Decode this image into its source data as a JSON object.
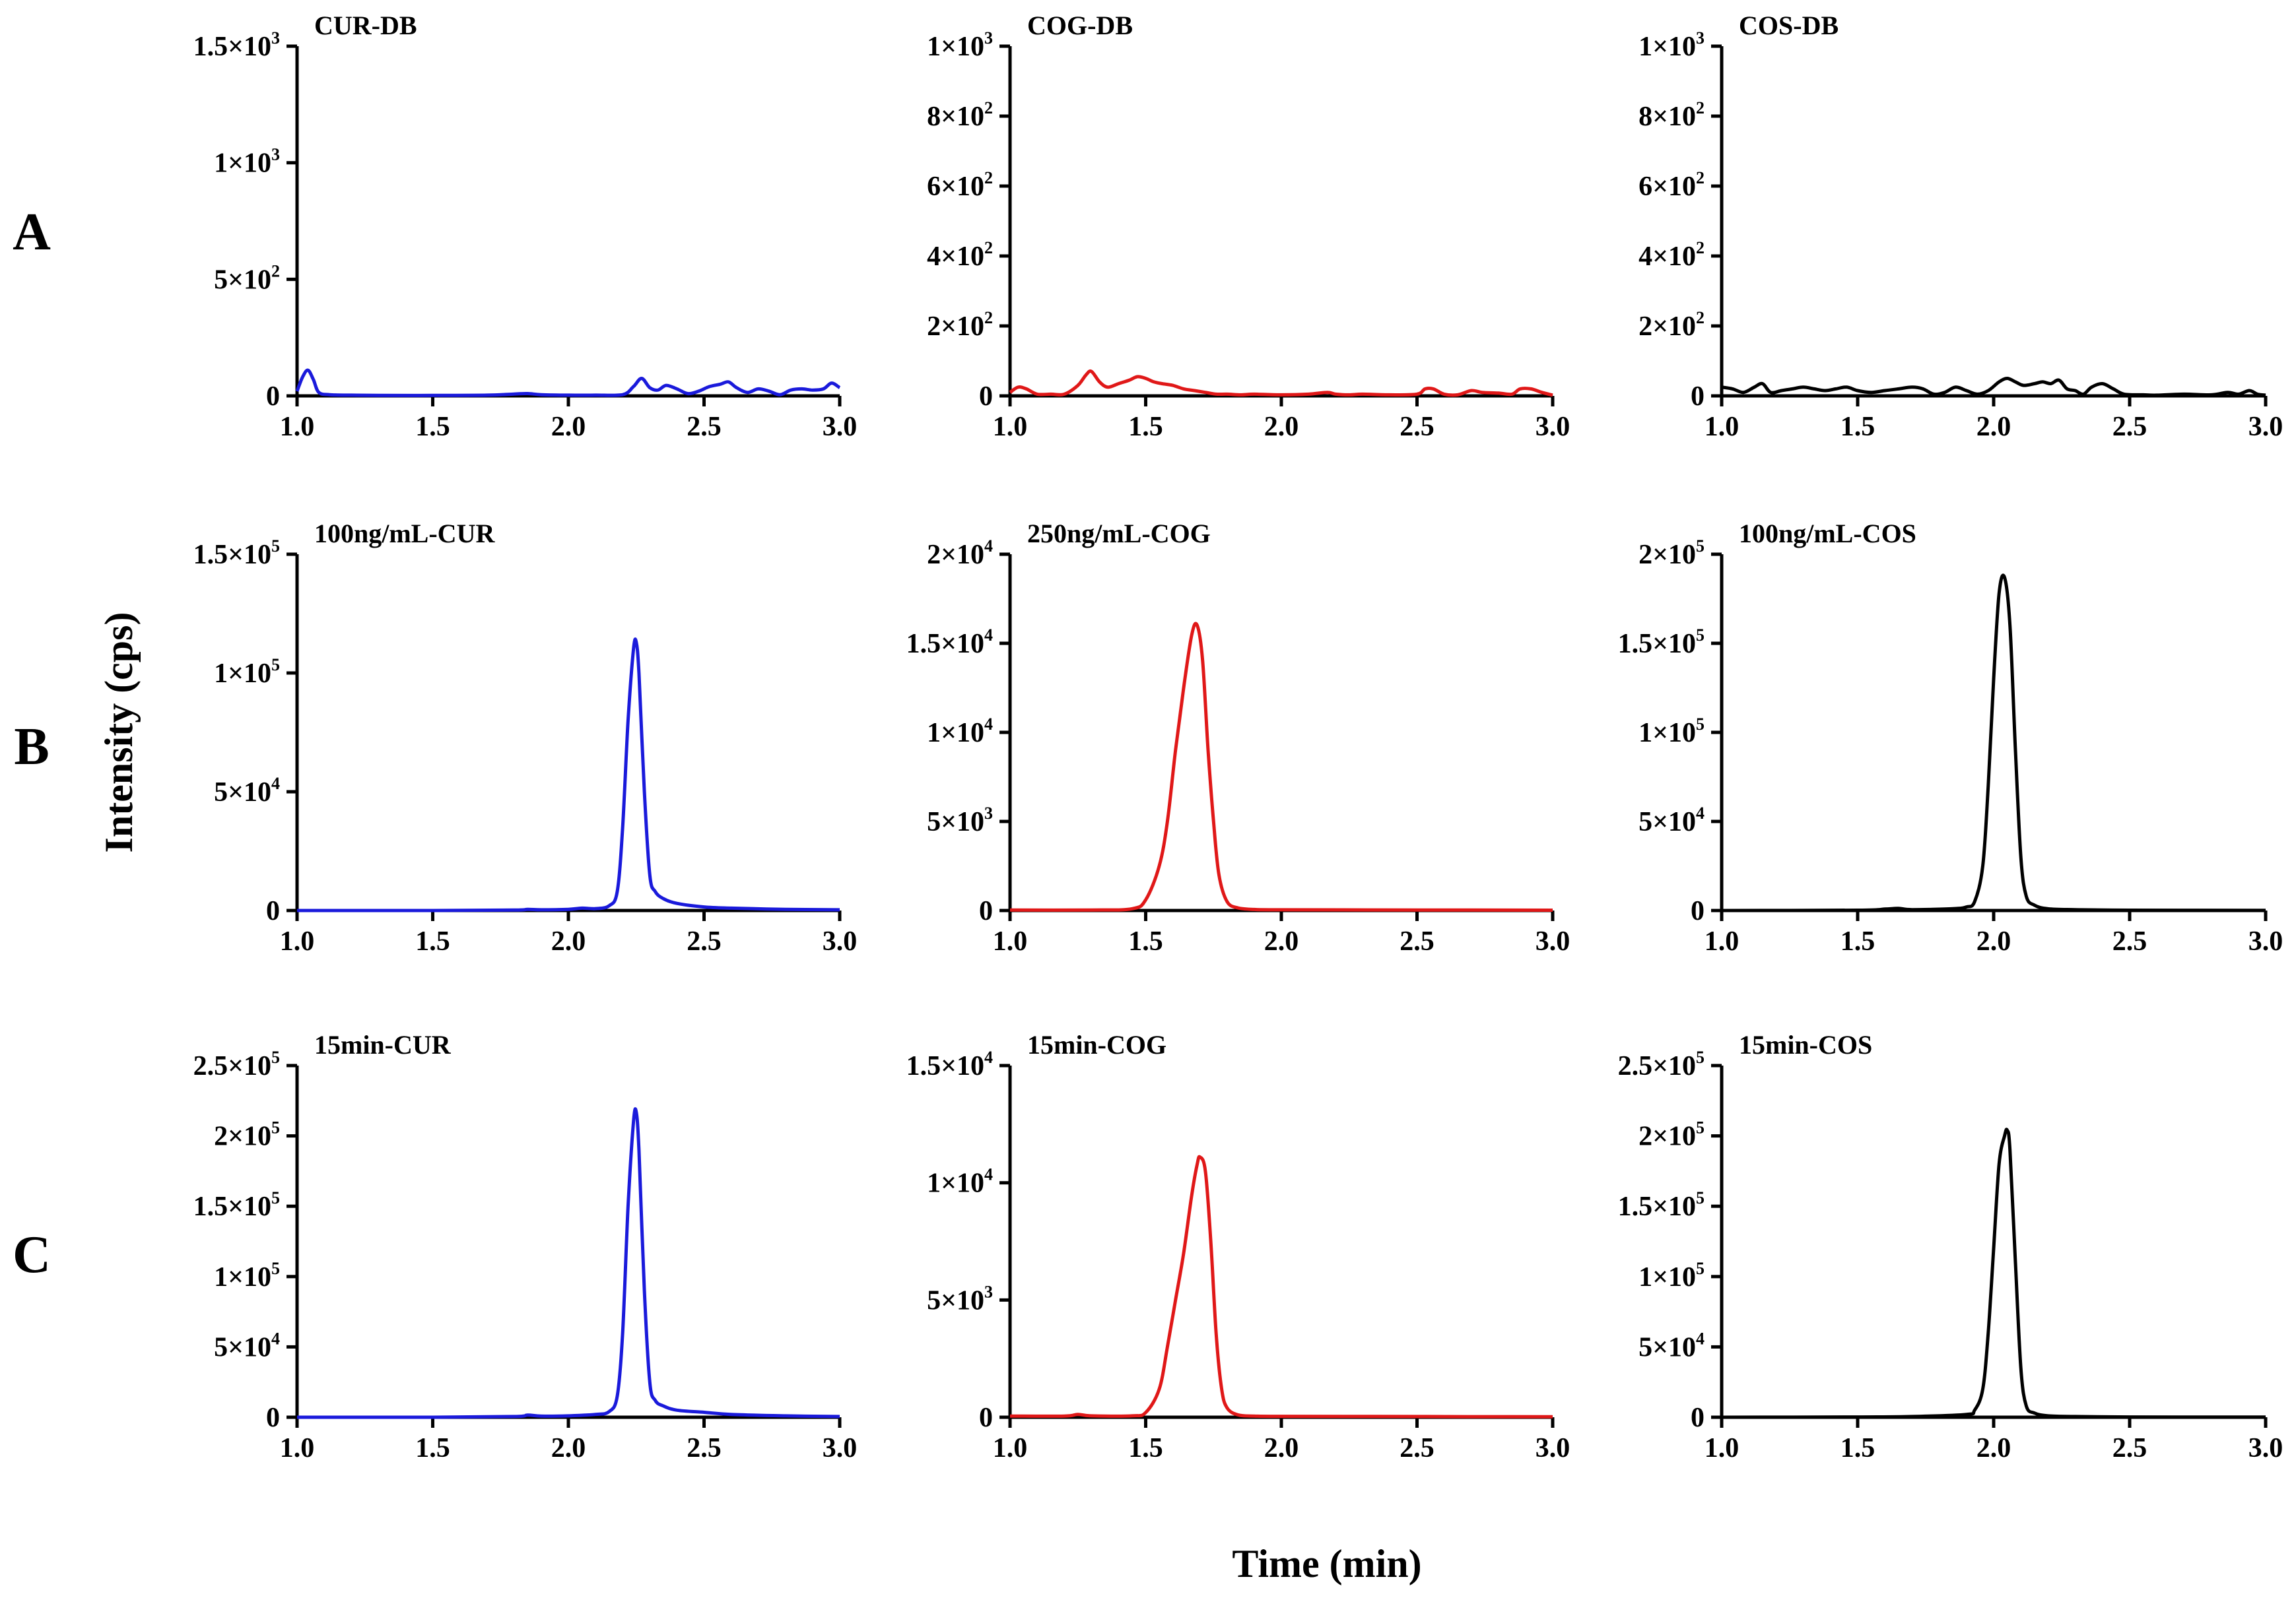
{
  "figure": {
    "ylabel": "Intensity (cps)",
    "xlabel": "Time (min)",
    "row_labels": [
      "A",
      "B",
      "C"
    ]
  },
  "colors": {
    "CUR": "#1a1adb",
    "COG": "#e01818",
    "COS": "#000000"
  },
  "chart_data": [
    {
      "type": "line",
      "row": "A",
      "title": "CUR-DB",
      "series_color": "CUR",
      "xlim": [
        1.0,
        3.0
      ],
      "ylim": [
        0,
        1500
      ],
      "xticks": [
        {
          "v": 1.0,
          "t": "1.0"
        },
        {
          "v": 1.5,
          "t": "1.5"
        },
        {
          "v": 2.0,
          "t": "2.0"
        },
        {
          "v": 2.5,
          "t": "2.5"
        },
        {
          "v": 3.0,
          "t": "3.0"
        }
      ],
      "yticks": [
        {
          "v": 0,
          "t": "0"
        },
        {
          "v": 500,
          "t": "5×10",
          "e": "2"
        },
        {
          "v": 1000,
          "t": "1×10",
          "e": "3"
        },
        {
          "v": 1500,
          "t": "1.5×10",
          "e": "3"
        }
      ],
      "x": [
        1.0,
        1.02,
        1.04,
        1.06,
        1.08,
        1.12,
        1.2,
        1.3,
        1.5,
        1.7,
        1.8,
        1.85,
        1.9,
        2.0,
        2.1,
        2.2,
        2.24,
        2.27,
        2.3,
        2.33,
        2.36,
        2.4,
        2.44,
        2.48,
        2.52,
        2.56,
        2.59,
        2.62,
        2.66,
        2.7,
        2.74,
        2.78,
        2.82,
        2.86,
        2.9,
        2.94,
        2.97,
        3.0
      ],
      "y": [
        20,
        80,
        110,
        70,
        15,
        5,
        3,
        2,
        2,
        3,
        8,
        10,
        5,
        3,
        3,
        5,
        40,
        75,
        35,
        25,
        45,
        30,
        10,
        20,
        40,
        50,
        60,
        35,
        15,
        30,
        20,
        5,
        25,
        30,
        25,
        30,
        55,
        35
      ]
    },
    {
      "type": "line",
      "row": "A",
      "title": "COG-DB",
      "series_color": "COG",
      "xlim": [
        1.0,
        3.0
      ],
      "ylim": [
        0,
        1000
      ],
      "xticks": [
        {
          "v": 1.0,
          "t": "1.0"
        },
        {
          "v": 1.5,
          "t": "1.5"
        },
        {
          "v": 2.0,
          "t": "2.0"
        },
        {
          "v": 2.5,
          "t": "2.5"
        },
        {
          "v": 3.0,
          "t": "3.0"
        }
      ],
      "yticks": [
        {
          "v": 0,
          "t": "0"
        },
        {
          "v": 200,
          "t": "2×10",
          "e": "2"
        },
        {
          "v": 400,
          "t": "4×10",
          "e": "2"
        },
        {
          "v": 600,
          "t": "6×10",
          "e": "2"
        },
        {
          "v": 800,
          "t": "8×10",
          "e": "2"
        },
        {
          "v": 1000,
          "t": "1×10",
          "e": "3"
        }
      ],
      "x": [
        1.0,
        1.03,
        1.06,
        1.1,
        1.15,
        1.2,
        1.25,
        1.28,
        1.3,
        1.33,
        1.36,
        1.4,
        1.44,
        1.47,
        1.5,
        1.53,
        1.56,
        1.6,
        1.64,
        1.68,
        1.72,
        1.76,
        1.8,
        1.85,
        1.9,
        2.0,
        2.1,
        2.17,
        2.2,
        2.25,
        2.3,
        2.4,
        2.5,
        2.53,
        2.56,
        2.6,
        2.65,
        2.7,
        2.74,
        2.8,
        2.85,
        2.88,
        2.92,
        2.96,
        3.0
      ],
      "y": [
        10,
        25,
        20,
        5,
        5,
        5,
        30,
        60,
        70,
        40,
        25,
        35,
        45,
        55,
        50,
        40,
        35,
        30,
        20,
        15,
        10,
        5,
        5,
        3,
        5,
        3,
        5,
        10,
        5,
        3,
        5,
        3,
        5,
        20,
        20,
        5,
        3,
        15,
        10,
        8,
        5,
        20,
        20,
        10,
        2
      ]
    },
    {
      "type": "line",
      "row": "A",
      "title": "COS-DB",
      "series_color": "COS",
      "xlim": [
        1.0,
        3.0
      ],
      "ylim": [
        0,
        1000
      ],
      "xticks": [
        {
          "v": 1.0,
          "t": "1.0"
        },
        {
          "v": 1.5,
          "t": "1.5"
        },
        {
          "v": 2.0,
          "t": "2.0"
        },
        {
          "v": 2.5,
          "t": "2.5"
        },
        {
          "v": 3.0,
          "t": "3.0"
        }
      ],
      "yticks": [
        {
          "v": 0,
          "t": "0"
        },
        {
          "v": 200,
          "t": "2×10",
          "e": "2"
        },
        {
          "v": 400,
          "t": "4×10",
          "e": "2"
        },
        {
          "v": 600,
          "t": "6×10",
          "e": "2"
        },
        {
          "v": 800,
          "t": "8×10",
          "e": "2"
        },
        {
          "v": 1000,
          "t": "1×10",
          "e": "3"
        }
      ],
      "x": [
        1.0,
        1.04,
        1.08,
        1.12,
        1.15,
        1.18,
        1.22,
        1.26,
        1.3,
        1.34,
        1.38,
        1.42,
        1.46,
        1.5,
        1.55,
        1.6,
        1.65,
        1.7,
        1.74,
        1.78,
        1.82,
        1.86,
        1.9,
        1.94,
        1.98,
        2.02,
        2.05,
        2.08,
        2.11,
        2.15,
        2.18,
        2.21,
        2.24,
        2.27,
        2.3,
        2.33,
        2.36,
        2.4,
        2.44,
        2.48,
        2.55,
        2.6,
        2.7,
        2.8,
        2.86,
        2.9,
        2.94,
        2.97,
        3.0
      ],
      "y": [
        25,
        20,
        10,
        25,
        35,
        10,
        15,
        20,
        25,
        20,
        15,
        20,
        25,
        15,
        10,
        15,
        20,
        25,
        20,
        5,
        10,
        25,
        15,
        5,
        15,
        40,
        50,
        40,
        30,
        35,
        40,
        35,
        45,
        20,
        15,
        5,
        25,
        35,
        20,
        5,
        3,
        2,
        5,
        3,
        10,
        5,
        15,
        5,
        2
      ]
    },
    {
      "type": "line",
      "row": "B",
      "title": "100ng/mL-CUR",
      "series_color": "CUR",
      "xlim": [
        1.0,
        3.0
      ],
      "ylim": [
        0,
        150000
      ],
      "xticks": [
        {
          "v": 1.0,
          "t": "1.0"
        },
        {
          "v": 1.5,
          "t": "1.5"
        },
        {
          "v": 2.0,
          "t": "2.0"
        },
        {
          "v": 2.5,
          "t": "2.5"
        },
        {
          "v": 3.0,
          "t": "3.0"
        }
      ],
      "yticks": [
        {
          "v": 0,
          "t": "0"
        },
        {
          "v": 50000,
          "t": "5×10",
          "e": "4"
        },
        {
          "v": 100000,
          "t": "1×10",
          "e": "5"
        },
        {
          "v": 150000,
          "t": "1.5×10",
          "e": "5"
        }
      ],
      "x": [
        1.0,
        1.5,
        1.8,
        1.85,
        1.9,
        2.0,
        2.05,
        2.1,
        2.15,
        2.18,
        2.2,
        2.22,
        2.24,
        2.25,
        2.26,
        2.28,
        2.3,
        2.32,
        2.35,
        2.4,
        2.5,
        2.6,
        2.8,
        3.0
      ],
      "y": [
        0,
        0,
        200,
        500,
        300,
        500,
        1000,
        800,
        2000,
        8000,
        35000,
        80000,
        110000,
        113000,
        100000,
        50000,
        15000,
        8000,
        5000,
        3000,
        1500,
        1000,
        500,
        300
      ]
    },
    {
      "type": "line",
      "row": "B",
      "title": "250ng/mL-COG",
      "series_color": "COG",
      "xlim": [
        1.0,
        3.0
      ],
      "ylim": [
        0,
        20000
      ],
      "xticks": [
        {
          "v": 1.0,
          "t": "1.0"
        },
        {
          "v": 1.5,
          "t": "1.5"
        },
        {
          "v": 2.0,
          "t": "2.0"
        },
        {
          "v": 2.5,
          "t": "2.5"
        },
        {
          "v": 3.0,
          "t": "3.0"
        }
      ],
      "yticks": [
        {
          "v": 0,
          "t": "0"
        },
        {
          "v": 5000,
          "t": "5×10",
          "e": "3"
        },
        {
          "v": 10000,
          "t": "1×10",
          "e": "4"
        },
        {
          "v": 15000,
          "t": "1.5×10",
          "e": "4"
        },
        {
          "v": 20000,
          "t": "2×10",
          "e": "4"
        }
      ],
      "x": [
        1.0,
        1.3,
        1.45,
        1.5,
        1.55,
        1.58,
        1.61,
        1.64,
        1.67,
        1.69,
        1.71,
        1.73,
        1.75,
        1.77,
        1.8,
        1.84,
        1.9,
        2.0,
        2.5,
        3.0
      ],
      "y": [
        30,
        30,
        100,
        600,
        2500,
        5000,
        9000,
        12500,
        15500,
        16000,
        14000,
        9000,
        5000,
        2000,
        500,
        150,
        60,
        40,
        30,
        20
      ]
    },
    {
      "type": "line",
      "row": "B",
      "title": "100ng/mL-COS",
      "series_color": "COS",
      "xlim": [
        1.0,
        3.0
      ],
      "ylim": [
        0,
        200000
      ],
      "xticks": [
        {
          "v": 1.0,
          "t": "1.0"
        },
        {
          "v": 1.5,
          "t": "1.5"
        },
        {
          "v": 2.0,
          "t": "2.0"
        },
        {
          "v": 2.5,
          "t": "2.5"
        },
        {
          "v": 3.0,
          "t": "3.0"
        }
      ],
      "yticks": [
        {
          "v": 0,
          "t": "0"
        },
        {
          "v": 50000,
          "t": "5×10",
          "e": "4"
        },
        {
          "v": 100000,
          "t": "1×10",
          "e": "5"
        },
        {
          "v": 150000,
          "t": "1.5×10",
          "e": "5"
        },
        {
          "v": 200000,
          "t": "2×10",
          "e": "5"
        }
      ],
      "x": [
        1.0,
        1.5,
        1.6,
        1.65,
        1.7,
        1.85,
        1.9,
        1.93,
        1.96,
        1.98,
        2.0,
        2.02,
        2.04,
        2.06,
        2.08,
        2.1,
        2.12,
        2.15,
        2.2,
        2.3,
        2.5,
        3.0
      ],
      "y": [
        0,
        200,
        800,
        1200,
        500,
        1000,
        2000,
        5000,
        25000,
        70000,
        130000,
        178000,
        187000,
        160000,
        90000,
        30000,
        8000,
        3000,
        1000,
        500,
        200,
        100
      ]
    },
    {
      "type": "line",
      "row": "C",
      "title": "15min-CUR",
      "series_color": "CUR",
      "xlim": [
        1.0,
        3.0
      ],
      "ylim": [
        0,
        250000
      ],
      "xticks": [
        {
          "v": 1.0,
          "t": "1.0"
        },
        {
          "v": 1.5,
          "t": "1.5"
        },
        {
          "v": 2.0,
          "t": "2.0"
        },
        {
          "v": 2.5,
          "t": "2.5"
        },
        {
          "v": 3.0,
          "t": "3.0"
        }
      ],
      "yticks": [
        {
          "v": 0,
          "t": "0"
        },
        {
          "v": 50000,
          "t": "5×10",
          "e": "4"
        },
        {
          "v": 100000,
          "t": "1×10",
          "e": "5"
        },
        {
          "v": 150000,
          "t": "1.5×10",
          "e": "5"
        },
        {
          "v": 200000,
          "t": "2×10",
          "e": "5"
        },
        {
          "v": 250000,
          "t": "2.5×10",
          "e": "5"
        }
      ],
      "x": [
        1.0,
        1.5,
        1.8,
        1.85,
        1.9,
        2.0,
        2.1,
        2.15,
        2.18,
        2.2,
        2.22,
        2.24,
        2.25,
        2.26,
        2.28,
        2.3,
        2.32,
        2.35,
        2.4,
        2.5,
        2.6,
        2.8,
        3.0
      ],
      "y": [
        0,
        0,
        500,
        1500,
        800,
        1000,
        2000,
        4000,
        15000,
        60000,
        150000,
        210000,
        217000,
        190000,
        90000,
        25000,
        12000,
        8000,
        5000,
        3500,
        2000,
        1000,
        500
      ]
    },
    {
      "type": "line",
      "row": "C",
      "title": "15min-COG",
      "series_color": "COG",
      "xlim": [
        1.0,
        3.0
      ],
      "ylim": [
        0,
        15000
      ],
      "xticks": [
        {
          "v": 1.0,
          "t": "1.0"
        },
        {
          "v": 1.5,
          "t": "1.5"
        },
        {
          "v": 2.0,
          "t": "2.0"
        },
        {
          "v": 2.5,
          "t": "2.5"
        },
        {
          "v": 3.0,
          "t": "3.0"
        }
      ],
      "yticks": [
        {
          "v": 0,
          "t": "0"
        },
        {
          "v": 5000,
          "t": "5×10",
          "e": "3"
        },
        {
          "v": 10000,
          "t": "1×10",
          "e": "4"
        },
        {
          "v": 15000,
          "t": "1.5×10",
          "e": "4"
        }
      ],
      "x": [
        1.0,
        1.2,
        1.25,
        1.3,
        1.45,
        1.5,
        1.55,
        1.58,
        1.61,
        1.64,
        1.67,
        1.69,
        1.7,
        1.72,
        1.74,
        1.76,
        1.78,
        1.8,
        1.84,
        1.9,
        2.0,
        2.5,
        3.0
      ],
      "y": [
        50,
        50,
        120,
        60,
        60,
        200,
        1200,
        3000,
        5000,
        7000,
        9500,
        10800,
        11100,
        10500,
        7500,
        3500,
        1200,
        400,
        100,
        50,
        40,
        30,
        20
      ]
    },
    {
      "type": "line",
      "row": "C",
      "title": "15min-COS",
      "series_color": "COS",
      "xlim": [
        1.0,
        3.0
      ],
      "ylim": [
        0,
        250000
      ],
      "xticks": [
        {
          "v": 1.0,
          "t": "1.0"
        },
        {
          "v": 1.5,
          "t": "1.5"
        },
        {
          "v": 2.0,
          "t": "2.0"
        },
        {
          "v": 2.5,
          "t": "2.5"
        },
        {
          "v": 3.0,
          "t": "3.0"
        }
      ],
      "yticks": [
        {
          "v": 0,
          "t": "0"
        },
        {
          "v": 50000,
          "t": "5×10",
          "e": "4"
        },
        {
          "v": 100000,
          "t": "1×10",
          "e": "5"
        },
        {
          "v": 150000,
          "t": "1.5×10",
          "e": "5"
        },
        {
          "v": 200000,
          "t": "2×10",
          "e": "5"
        },
        {
          "v": 250000,
          "t": "2.5×10",
          "e": "5"
        }
      ],
      "x": [
        1.0,
        1.5,
        1.7,
        1.9,
        1.93,
        1.96,
        1.98,
        2.0,
        2.02,
        2.04,
        2.05,
        2.06,
        2.08,
        2.1,
        2.12,
        2.15,
        2.2,
        2.3,
        2.5,
        3.0
      ],
      "y": [
        0,
        200,
        500,
        2000,
        5000,
        20000,
        60000,
        120000,
        180000,
        200000,
        204000,
        190000,
        110000,
        35000,
        8000,
        3000,
        1000,
        500,
        200,
        100
      ]
    }
  ]
}
